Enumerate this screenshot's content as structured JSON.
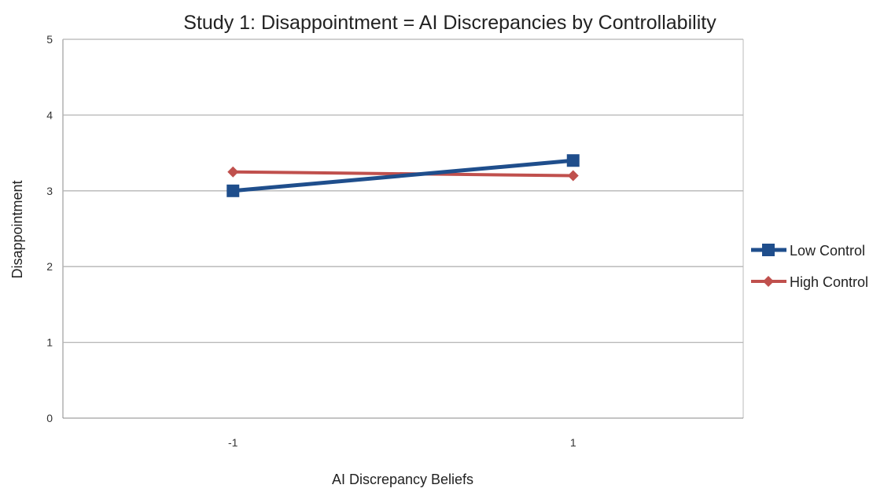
{
  "chart_data": {
    "type": "line",
    "title": "Study 1: Disappointment = AI Discrepancies by Controllability",
    "xlabel": "AI Discrepancy Beliefs",
    "ylabel": "Disappointment",
    "categories": [
      "-1",
      "1"
    ],
    "ylim": [
      0,
      5
    ],
    "yticks": [
      "0",
      "1",
      "2",
      "3",
      "4",
      "5"
    ],
    "grid": true,
    "legend": "right",
    "series": [
      {
        "name": "Low Control",
        "values": [
          3.0,
          3.4
        ],
        "color": "#1f4e8c",
        "marker": "square"
      },
      {
        "name": "High Control",
        "values": [
          3.25,
          3.2
        ],
        "color": "#c0504d",
        "marker": "diamond"
      }
    ]
  }
}
